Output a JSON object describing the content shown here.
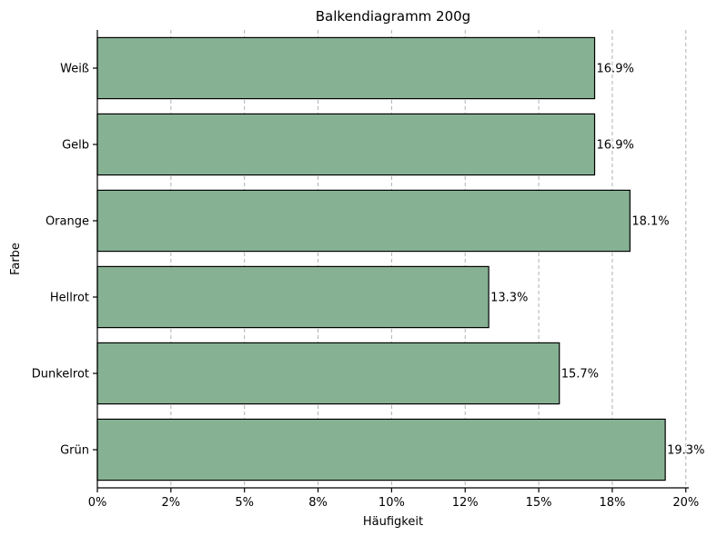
{
  "chart_data": {
    "type": "bar",
    "orientation": "horizontal",
    "title": "Balkendiagramm 200g",
    "xlabel": "Häufigkeit",
    "ylabel": "Farbe",
    "categories": [
      "Weiß",
      "Gelb",
      "Orange",
      "Hellrot",
      "Dunkelrot",
      "Grün"
    ],
    "values": [
      16.9,
      16.9,
      18.1,
      13.3,
      15.7,
      19.3
    ],
    "value_labels": [
      "16.9%",
      "16.9%",
      "18.1%",
      "13.3%",
      "15.7%",
      "19.3%"
    ],
    "xlim": [
      0,
      20.1
    ],
    "xticks": [
      0,
      2.5,
      5,
      7.5,
      10,
      12.5,
      15,
      17.5,
      20
    ],
    "xtick_labels": [
      "0%",
      "2%",
      "5%",
      "8%",
      "10%",
      "12%",
      "15%",
      "18%",
      "20%"
    ],
    "grid": "x-dashed",
    "bar_color": "#86b293"
  }
}
